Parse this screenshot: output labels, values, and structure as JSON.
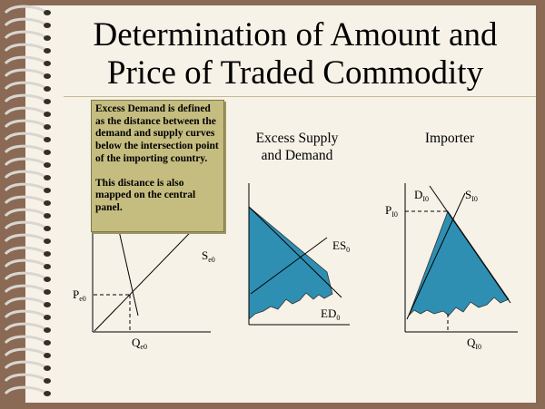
{
  "title_line1": "Determination of Amount and",
  "title_line2": "Price of Traded Commodity",
  "callout": {
    "para1": "Excess Demand is defined as the distance between the demand and supply curves below the intersection point of the importing country.",
    "para2": "This distance is also mapped on the central panel."
  },
  "panels": {
    "middle": {
      "title_line1": "Excess Supply",
      "title_line2": "and Demand",
      "es_main": "ES",
      "es_sub": "0",
      "ed_main": "ED",
      "ed_sub": "0"
    },
    "right": {
      "title": "Importer",
      "d_main": "D",
      "d_sub": "I0",
      "s_main": "S",
      "s_sub": "I0",
      "p_main": "P",
      "p_sub": "I0",
      "q_main": "Q",
      "q_sub": "I0"
    },
    "left": {
      "s_main": "S",
      "s_sub": "e0",
      "p_main": "P",
      "p_sub": "e0",
      "q_main": "Q",
      "q_sub": "e0"
    }
  },
  "colors": {
    "fill": "#2e8fb3",
    "paper": "#f6f2e8",
    "callout": "#c5bd7f",
    "background": "#8a6a55"
  }
}
